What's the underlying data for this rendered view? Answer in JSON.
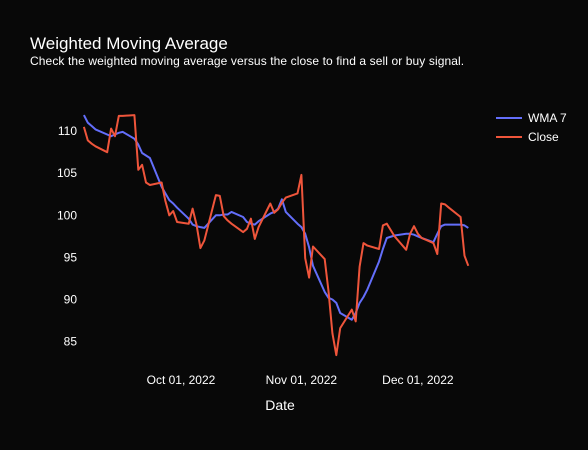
{
  "chart_data": {
    "type": "line",
    "title": "Weighted Moving Average",
    "subtitle": "Check the weighted moving average versus the close to find a sell or buy signal.",
    "xlabel": "Date",
    "ylabel": "",
    "x_ticks": [
      "Oct 01, 2022",
      "Nov 01, 2022",
      "Dec 01, 2022"
    ],
    "y_ticks": [
      85,
      90,
      95,
      100,
      105,
      110
    ],
    "ylim": [
      82,
      114
    ],
    "xlim": [
      "2022-09-05",
      "2022-12-17"
    ],
    "grid": false,
    "legend_position": "top-right",
    "series": [
      {
        "name": "WMA 7",
        "color": "#636efa",
        "points": [
          [
            "2022-09-06",
            111.9
          ],
          [
            "2022-09-07",
            111.0
          ],
          [
            "2022-09-08",
            110.6
          ],
          [
            "2022-09-09",
            110.2
          ],
          [
            "2022-09-12",
            109.6
          ],
          [
            "2022-09-13",
            109.4
          ],
          [
            "2022-09-14",
            109.6
          ],
          [
            "2022-09-15",
            109.8
          ],
          [
            "2022-09-16",
            109.9
          ],
          [
            "2022-09-19",
            109.1
          ],
          [
            "2022-09-20",
            108.4
          ],
          [
            "2022-09-21",
            107.4
          ],
          [
            "2022-09-22",
            107.1
          ],
          [
            "2022-09-23",
            106.8
          ],
          [
            "2022-09-26",
            103.4
          ],
          [
            "2022-09-27",
            102.6
          ],
          [
            "2022-09-28",
            101.8
          ],
          [
            "2022-09-29",
            101.4
          ],
          [
            "2022-09-30",
            100.9
          ],
          [
            "2022-10-03",
            99.6
          ],
          [
            "2022-10-04",
            98.9
          ],
          [
            "2022-10-05",
            98.7
          ],
          [
            "2022-10-06",
            98.6
          ],
          [
            "2022-10-07",
            98.5
          ],
          [
            "2022-10-10",
            100.0
          ],
          [
            "2022-10-11",
            100.0
          ],
          [
            "2022-10-12",
            100.1
          ],
          [
            "2022-10-13",
            100.1
          ],
          [
            "2022-10-14",
            100.4
          ],
          [
            "2022-10-17",
            99.8
          ],
          [
            "2022-10-18",
            99.2
          ],
          [
            "2022-10-19",
            99.0
          ],
          [
            "2022-10-20",
            98.9
          ],
          [
            "2022-10-21",
            99.3
          ],
          [
            "2022-10-24",
            100.2
          ],
          [
            "2022-10-25",
            100.4
          ],
          [
            "2022-10-26",
            100.8
          ],
          [
            "2022-10-27",
            101.9
          ],
          [
            "2022-10-28",
            100.4
          ],
          [
            "2022-10-31",
            99.0
          ],
          [
            "2022-11-01",
            98.6
          ],
          [
            "2022-11-02",
            97.8
          ],
          [
            "2022-11-03",
            96.2
          ],
          [
            "2022-11-04",
            94.0
          ],
          [
            "2022-11-07",
            90.9
          ],
          [
            "2022-11-08",
            90.2
          ],
          [
            "2022-11-09",
            90.0
          ],
          [
            "2022-11-10",
            89.6
          ],
          [
            "2022-11-11",
            88.4
          ],
          [
            "2022-11-14",
            87.6
          ],
          [
            "2022-11-15",
            88.4
          ],
          [
            "2022-11-16",
            89.6
          ],
          [
            "2022-11-17",
            90.3
          ],
          [
            "2022-11-18",
            91.2
          ],
          [
            "2022-11-21",
            94.5
          ],
          [
            "2022-11-22",
            96.0
          ],
          [
            "2022-11-23",
            97.3
          ],
          [
            "2022-11-25",
            97.6
          ],
          [
            "2022-11-28",
            97.8
          ],
          [
            "2022-11-29",
            97.8
          ],
          [
            "2022-11-30",
            97.7
          ],
          [
            "2022-12-01",
            97.5
          ],
          [
            "2022-12-02",
            97.3
          ],
          [
            "2022-12-05",
            96.8
          ],
          [
            "2022-12-06",
            97.8
          ],
          [
            "2022-12-07",
            98.7
          ],
          [
            "2022-12-08",
            98.9
          ],
          [
            "2022-12-09",
            98.9
          ],
          [
            "2022-12-12",
            98.9
          ],
          [
            "2022-12-13",
            98.8
          ],
          [
            "2022-12-14",
            98.5
          ]
        ]
      },
      {
        "name": "Close",
        "color": "#ef553b",
        "points": [
          [
            "2022-09-06",
            110.5
          ],
          [
            "2022-09-07",
            108.9
          ],
          [
            "2022-09-08",
            108.5
          ],
          [
            "2022-09-09",
            108.2
          ],
          [
            "2022-09-12",
            107.5
          ],
          [
            "2022-09-13",
            110.3
          ],
          [
            "2022-09-14",
            109.4
          ],
          [
            "2022-09-15",
            111.8
          ],
          [
            "2022-09-16",
            111.8
          ],
          [
            "2022-09-19",
            111.9
          ],
          [
            "2022-09-20",
            105.4
          ],
          [
            "2022-09-21",
            106.0
          ],
          [
            "2022-09-22",
            103.9
          ],
          [
            "2022-09-23",
            103.6
          ],
          [
            "2022-09-26",
            103.9
          ],
          [
            "2022-09-27",
            101.7
          ],
          [
            "2022-09-28",
            100.0
          ],
          [
            "2022-09-29",
            100.5
          ],
          [
            "2022-09-30",
            99.2
          ],
          [
            "2022-10-03",
            99.0
          ],
          [
            "2022-10-04",
            100.8
          ],
          [
            "2022-10-05",
            98.9
          ],
          [
            "2022-10-06",
            96.1
          ],
          [
            "2022-10-07",
            97.0
          ],
          [
            "2022-10-10",
            102.4
          ],
          [
            "2022-10-11",
            102.3
          ],
          [
            "2022-10-12",
            99.9
          ],
          [
            "2022-10-13",
            99.4
          ],
          [
            "2022-10-14",
            99.0
          ],
          [
            "2022-10-17",
            98.0
          ],
          [
            "2022-10-18",
            98.4
          ],
          [
            "2022-10-19",
            99.6
          ],
          [
            "2022-10-20",
            97.2
          ],
          [
            "2022-10-21",
            98.6
          ],
          [
            "2022-10-24",
            101.4
          ],
          [
            "2022-10-25",
            100.3
          ],
          [
            "2022-10-26",
            100.7
          ],
          [
            "2022-10-27",
            101.5
          ],
          [
            "2022-10-28",
            102.1
          ],
          [
            "2022-10-31",
            102.6
          ],
          [
            "2022-11-01",
            104.8
          ],
          [
            "2022-11-02",
            94.9
          ],
          [
            "2022-11-03",
            92.6
          ],
          [
            "2022-11-04",
            96.3
          ],
          [
            "2022-11-07",
            94.8
          ],
          [
            "2022-11-08",
            91.0
          ],
          [
            "2022-11-09",
            86.0
          ],
          [
            "2022-11-10",
            83.4
          ],
          [
            "2022-11-11",
            86.6
          ],
          [
            "2022-11-14",
            88.8
          ],
          [
            "2022-11-15",
            87.4
          ],
          [
            "2022-11-16",
            93.9
          ],
          [
            "2022-11-17",
            96.7
          ],
          [
            "2022-11-18",
            96.4
          ],
          [
            "2022-11-21",
            96.0
          ],
          [
            "2022-11-22",
            98.8
          ],
          [
            "2022-11-23",
            99.0
          ],
          [
            "2022-11-25",
            97.5
          ],
          [
            "2022-11-28",
            95.9
          ],
          [
            "2022-11-29",
            97.8
          ],
          [
            "2022-11-30",
            98.7
          ],
          [
            "2022-12-01",
            97.8
          ],
          [
            "2022-12-02",
            97.3
          ],
          [
            "2022-12-05",
            96.7
          ],
          [
            "2022-12-06",
            95.4
          ],
          [
            "2022-12-07",
            101.4
          ],
          [
            "2022-12-08",
            101.3
          ],
          [
            "2022-12-09",
            100.9
          ],
          [
            "2022-12-12",
            99.8
          ],
          [
            "2022-12-13",
            95.2
          ],
          [
            "2022-12-14",
            94.0
          ]
        ]
      }
    ]
  }
}
